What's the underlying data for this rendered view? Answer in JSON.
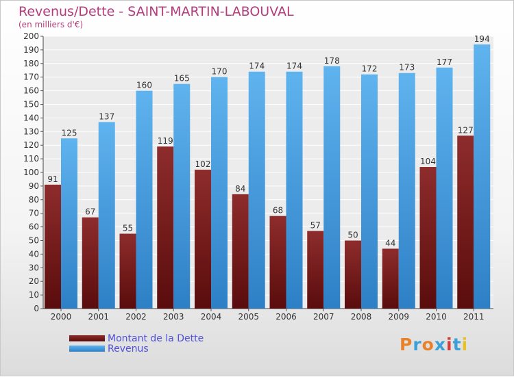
{
  "chart_data": {
    "type": "bar",
    "title": "Revenus/Dette - SAINT-MARTIN-LABOUVAL",
    "subtitle": "(en milliers d'€)",
    "categories": [
      "2000",
      "2001",
      "2002",
      "2003",
      "2004",
      "2005",
      "2006",
      "2007",
      "2008",
      "2009",
      "2010",
      "2011"
    ],
    "series": [
      {
        "name": "Montant de la Dette",
        "values": [
          91,
          67,
          55,
          119,
          102,
          84,
          68,
          57,
          50,
          44,
          104,
          127
        ],
        "color": "#7a1c1c"
      },
      {
        "name": "Revenus",
        "values": [
          125,
          137,
          160,
          165,
          170,
          174,
          174,
          178,
          172,
          173,
          177,
          194
        ],
        "color": "#4ea3e4"
      }
    ],
    "ylim": [
      0,
      200
    ],
    "ytick_step": 10,
    "grid": true,
    "legend_position": "bottom-left"
  },
  "logo": {
    "text": "Proxiti",
    "colors": [
      "#e8822a",
      "#3aa0d8",
      "#e8822a",
      "#3aa0d8",
      "#d43c3c",
      "#3aa0d8",
      "#e8c02a"
    ]
  }
}
